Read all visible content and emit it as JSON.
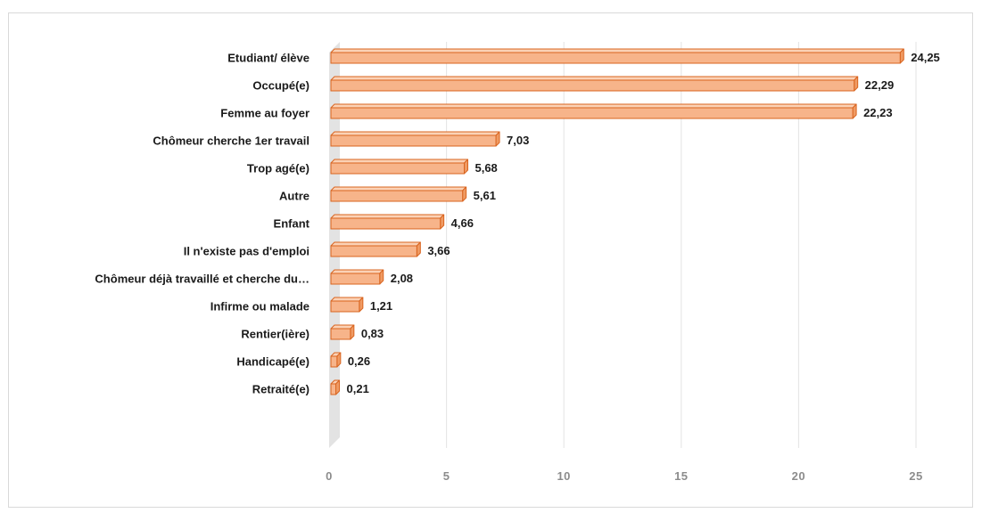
{
  "chart_data": {
    "type": "bar",
    "orientation": "horizontal",
    "categories": [
      "Etudiant/ élève",
      "Occupé(e)",
      "Femme au foyer",
      "Chômeur cherche 1er travail",
      "Trop agé(e)",
      "Autre",
      "Enfant",
      "Il n'existe pas d'emploi",
      "Chômeur déjà travaillé et cherche du…",
      "Infirme ou malade",
      "Rentier(ière)",
      "Handicapé(e)",
      "Retraité(e)"
    ],
    "values": [
      24.25,
      22.29,
      22.23,
      7.03,
      5.68,
      5.61,
      4.66,
      3.66,
      2.08,
      1.21,
      0.83,
      0.26,
      0.21
    ],
    "value_labels": [
      "24,25",
      "22,29",
      "22,23",
      "7,03",
      "5,68",
      "5,61",
      "4,66",
      "3,66",
      "2,08",
      "1,21",
      "0,83",
      "0,26",
      "0,21"
    ],
    "xlim": [
      0,
      25
    ],
    "xticks": [
      0,
      5,
      10,
      15,
      20,
      25
    ],
    "xtick_labels": [
      "0",
      "5",
      "10",
      "15",
      "20",
      "25"
    ],
    "title": "",
    "xlabel": "",
    "ylabel": "",
    "grid": true,
    "legend": "none",
    "bar_style": "3d",
    "colors": {
      "bar_front": "#f7b48a",
      "bar_top": "#fbd2b6",
      "bar_side": "#ef9a63",
      "bar_edge": "#d9641f",
      "grid": "#e3e3e3",
      "wall": "#e3e3e3"
    }
  }
}
